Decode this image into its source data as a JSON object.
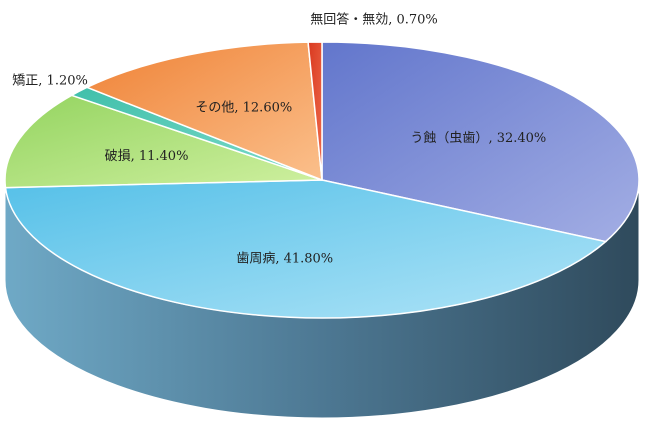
{
  "chart_data": {
    "type": "pie3d",
    "categories": [
      "う蝕（虫歯）",
      "歯周病",
      "破損",
      "矯正",
      "その他",
      "無回答・無効"
    ],
    "values": [
      32.4,
      41.8,
      11.4,
      1.2,
      12.6,
      0.7
    ],
    "value_labels": [
      "32.40%",
      "41.80%",
      "11.40%",
      "1.20%",
      "12.60%",
      "0.70%"
    ],
    "label_separator": ", ",
    "colors": [
      [
        "#6276cc",
        "#a3aee4"
      ],
      [
        "#55c0e8",
        "#b0e4f7"
      ],
      [
        "#94d460",
        "#cff0a0"
      ],
      [
        "#3fbfaa",
        "#7fdccb"
      ],
      [
        "#ef8236",
        "#fbc08c"
      ],
      [
        "#d9391f",
        "#ee6a4c"
      ]
    ]
  }
}
